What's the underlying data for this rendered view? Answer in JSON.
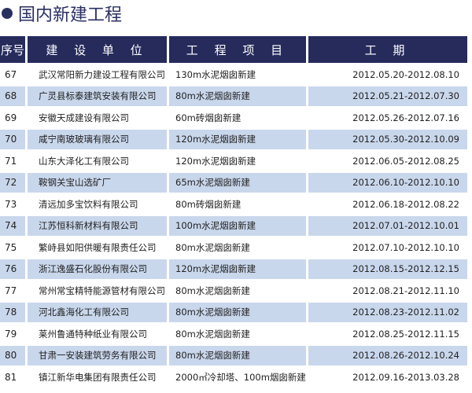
{
  "title": "国内新建工程",
  "headers": [
    "序号",
    "建 设 单 位",
    "工 程 项 目",
    "工 期"
  ],
  "rows": [
    [
      "67",
      "武汉常阳新力建设工程有限公司",
      "130m水泥烟囱新建",
      "2012.05.20-2012.08.10"
    ],
    [
      "68",
      "广灵县标泰建筑安装有限公司",
      "80m水泥烟囱新建",
      "2012.05.21-2012.07.30"
    ],
    [
      "69",
      "安徽天成建设有限公司",
      "60m砖烟囱新建",
      "2012.05.26-2012.07.16"
    ],
    [
      "70",
      "咸宁南玻玻璃有限公司",
      "120m水泥烟囱新建",
      "2012.05.30-2012.10.09"
    ],
    [
      "71",
      "山东大泽化工有限公司",
      "120m水泥烟囱新建",
      "2012.06.05-2012.08.25"
    ],
    [
      "72",
      "鞍钢关宝山选矿厂",
      "65m水泥烟囱新建",
      "2012.06.10-2012.10.10"
    ],
    [
      "73",
      "清远加多宝饮料有限公司",
      "80m砖烟囱新建",
      "2012.06.18-2012.08.22"
    ],
    [
      "74",
      "江苏恒科新材料有限公司",
      "100m水泥烟囱新建",
      "2012.07.01-2012.10.01"
    ],
    [
      "75",
      "繁峙县如阳供暖有限责任公司",
      "80m水泥烟囱新建",
      "2012.07.10-2012.10.10"
    ],
    [
      "76",
      "浙江逸盛石化股份有限公司",
      "120m水泥烟囱新建",
      "2012.08.15-2012.12.15"
    ],
    [
      "77",
      "常州常宝精特能源管材有限公司",
      "80m水泥烟囱新建",
      "2012.08.21-2012.11.10"
    ],
    [
      "78",
      "河北鑫海化工有限公司",
      "80m水泥烟囱新建",
      "2012.08.23-2012.11.02"
    ],
    [
      "79",
      "莱州鲁通特种纸业有限公司",
      "80m水泥烟囱新建",
      "2012.08.25-2012.11.15"
    ],
    [
      "80",
      "甘肃一安装建筑劳务有限公司",
      "80m水泥烟囱新建",
      "2012.08.26-2012.10.24"
    ],
    [
      "81",
      "镇江新华电集团有限责任公司",
      "2000㎡冷却塔、100m烟囱新建",
      "2012.09.16-2013.03.28"
    ]
  ],
  "colors": {
    "header": "#262b5c",
    "alt_row": "#c9d7ec"
  }
}
